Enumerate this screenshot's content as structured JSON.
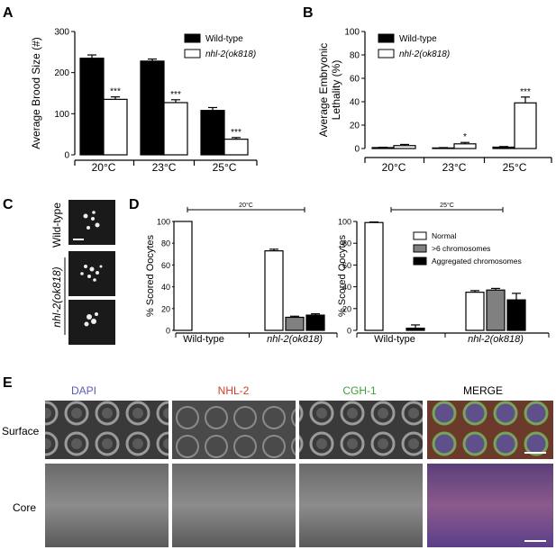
{
  "panel_labels": {
    "a": "A",
    "b": "B",
    "c": "C",
    "d": "D",
    "e": "E"
  },
  "colors": {
    "black": "#000000",
    "white": "#ffffff",
    "gray": "#808080",
    "dapi": "#5a5ab4",
    "nhl2": "#d23c28",
    "cgh1": "#3ca03c"
  },
  "chart_data": [
    {
      "panel": "A",
      "type": "bar",
      "ylabel": "Average Brood Size (#)",
      "ylim": [
        0,
        300
      ],
      "yticks": [
        0,
        100,
        200,
        300
      ],
      "categories": [
        "20°C",
        "23°C",
        "25°C"
      ],
      "series": [
        {
          "name": "Wild-type",
          "fill": "#000000",
          "values": [
            235,
            228,
            108
          ],
          "errors": [
            8,
            5,
            7
          ]
        },
        {
          "name": "nhl-2(ok818)",
          "fill": "#ffffff",
          "values": [
            135,
            127,
            38
          ],
          "errors": [
            6,
            7,
            4
          ]
        }
      ],
      "annotations": [
        {
          "category": 0,
          "series": 1,
          "text": "***"
        },
        {
          "category": 1,
          "series": 1,
          "text": "***"
        },
        {
          "category": 2,
          "series": 1,
          "text": "***"
        }
      ]
    },
    {
      "panel": "B",
      "type": "bar",
      "ylabel": "Average Embryonic Lethality (%)",
      "ylim": [
        0,
        100
      ],
      "yticks": [
        0,
        20,
        40,
        60,
        80,
        100
      ],
      "categories": [
        "20°C",
        "23°C",
        "25°C"
      ],
      "series": [
        {
          "name": "Wild-type",
          "fill": "#000000",
          "values": [
            0.8,
            0.5,
            1.2
          ],
          "errors": [
            0.3,
            0.3,
            0.5
          ]
        },
        {
          "name": "nhl-2(ok818)",
          "fill": "#ffffff",
          "values": [
            2.5,
            4.0,
            39
          ],
          "errors": [
            1.0,
            1.2,
            5
          ]
        }
      ],
      "annotations": [
        {
          "category": 1,
          "series": 1,
          "text": "*"
        },
        {
          "category": 2,
          "series": 1,
          "text": "***"
        }
      ]
    },
    {
      "panel": "D",
      "type": "bar",
      "title": "20°C",
      "ylabel": "% Scored Oocytes",
      "ylim": [
        0,
        100
      ],
      "yticks": [
        0,
        20,
        40,
        60,
        80,
        100
      ],
      "categories": [
        "Wild-type",
        "nhl-2(ok818)"
      ],
      "series": [
        {
          "name": "Normal",
          "fill": "#ffffff",
          "values": [
            100,
            73
          ],
          "errors": [
            0,
            1.5
          ]
        },
        {
          "name": ">6 chromosomes",
          "fill": "#808080",
          "values": [
            0,
            12
          ],
          "errors": [
            0,
            1
          ]
        },
        {
          "name": "Aggregated chromosomes",
          "fill": "#000000",
          "values": [
            0,
            14
          ],
          "errors": [
            0,
            1.2
          ]
        }
      ]
    },
    {
      "panel": "D",
      "type": "bar",
      "title": "25°C",
      "ylabel": "% Scored Oocytes",
      "ylim": [
        0,
        100
      ],
      "yticks": [
        0,
        20,
        40,
        60,
        80,
        100
      ],
      "categories": [
        "Wild-type",
        "nhl-2(ok818)"
      ],
      "series": [
        {
          "name": "Normal",
          "fill": "#ffffff",
          "values": [
            99,
            35
          ],
          "errors": [
            0.5,
            1.5
          ]
        },
        {
          "name": ">6 chromosomes",
          "fill": "#808080",
          "values": [
            0,
            37
          ],
          "errors": [
            0,
            1.5
          ]
        },
        {
          "name": "Aggregated chromosomes",
          "fill": "#000000",
          "values": [
            2,
            28
          ],
          "errors": [
            3,
            6
          ]
        }
      ]
    }
  ],
  "panel_c": {
    "wild_type_label": "Wild-type",
    "mutant_label": "nhl-2(ok818)"
  },
  "panel_e": {
    "columns": [
      "DAPI",
      "NHL-2",
      "CGH-1",
      "MERGE"
    ],
    "rows": [
      "Surface",
      "Core"
    ]
  }
}
